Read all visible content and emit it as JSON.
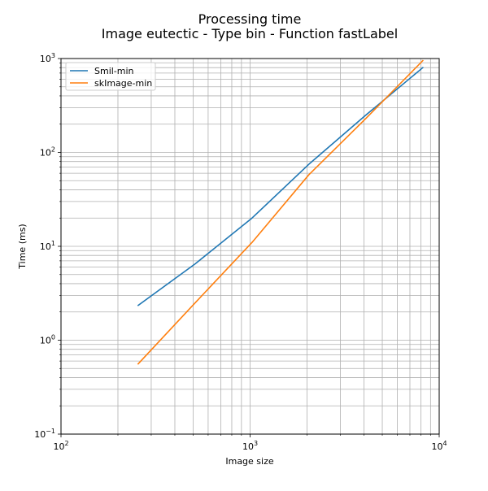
{
  "chart_data": {
    "type": "line",
    "title": "Processing time",
    "subtitle": "Image eutectic - Type bin - Function fastLabel",
    "xlabel": "Image size",
    "ylabel": "Time (ms)",
    "xscale": "log",
    "yscale": "log",
    "xlim": [
      100,
      10000
    ],
    "ylim": [
      0.1,
      1000
    ],
    "x_ticks": [
      {
        "value": 100,
        "base": "10",
        "exp": "2"
      },
      {
        "value": 1000,
        "base": "10",
        "exp": "3"
      },
      {
        "value": 10000,
        "base": "10",
        "exp": "4"
      }
    ],
    "y_ticks": [
      {
        "value": 0.1,
        "base": "10",
        "exp": "−1"
      },
      {
        "value": 1,
        "base": "10",
        "exp": "0"
      },
      {
        "value": 10,
        "base": "10",
        "exp": "1"
      },
      {
        "value": 100,
        "base": "10",
        "exp": "2"
      },
      {
        "value": 1000,
        "base": "10",
        "exp": "3"
      }
    ],
    "grid": "major and minor",
    "legend_position": "upper-left",
    "series": [
      {
        "name": "Smil-min",
        "color": "#1f77b4",
        "x": [
          256,
          512,
          1024,
          2048,
          4096,
          8192
        ],
        "y": [
          2.35,
          6.5,
          20,
          75,
          250,
          800
        ]
      },
      {
        "name": "skImage-min",
        "color": "#ff7f0e",
        "x": [
          256,
          512,
          1024,
          2048,
          4096,
          8192
        ],
        "y": [
          0.56,
          2.5,
          11,
          58,
          230,
          950
        ]
      }
    ]
  }
}
